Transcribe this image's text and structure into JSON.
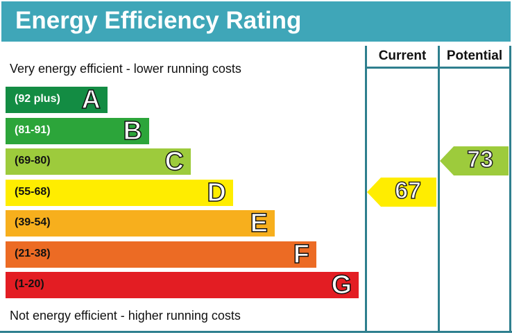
{
  "chart_data": {
    "type": "bar",
    "title": "Energy Efficiency Rating",
    "top_caption": "Very energy efficient - lower running costs",
    "bottom_caption": "Not energy efficient - higher running costs",
    "columns": [
      "Current",
      "Potential"
    ],
    "bands": [
      {
        "letter": "A",
        "range": "(92 plus)",
        "color": "#138c43",
        "text_color": "#ffffff"
      },
      {
        "letter": "B",
        "range": "(81-91)",
        "color": "#2ca53a",
        "text_color": "#ffffff"
      },
      {
        "letter": "C",
        "range": "(69-80)",
        "color": "#9dcb3c",
        "text_color": "#111111"
      },
      {
        "letter": "D",
        "range": "(55-68)",
        "color": "#ffed00",
        "text_color": "#111111"
      },
      {
        "letter": "E",
        "range": "(39-54)",
        "color": "#f7af1d",
        "text_color": "#111111"
      },
      {
        "letter": "F",
        "range": "(21-38)",
        "color": "#ec6b24",
        "text_color": "#111111"
      },
      {
        "letter": "G",
        "range": "(1-20)",
        "color": "#e31d23",
        "text_color": "#111111"
      }
    ],
    "current": {
      "value": "67",
      "band": "D",
      "color": "#ffed00"
    },
    "potential": {
      "value": "73",
      "band": "C",
      "color": "#9dcb3c"
    }
  }
}
